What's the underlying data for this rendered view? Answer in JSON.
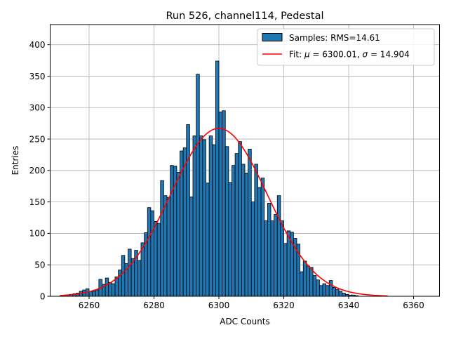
{
  "chart_data": {
    "type": "bar",
    "title": "Run 526, channel114, Pedestal",
    "xlabel": "ADC Counts",
    "ylabel": "Entries",
    "xlim": [
      6248,
      6368
    ],
    "ylim": [
      0,
      432
    ],
    "xticks": [
      6260,
      6280,
      6300,
      6320,
      6340,
      6360
    ],
    "yticks": [
      0,
      50,
      100,
      150,
      200,
      250,
      300,
      350,
      400
    ],
    "grid": true,
    "legend_position": "top-right",
    "bin_start": 6252,
    "bin_width": 1,
    "series": [
      {
        "name": "Samples: RMS=14.61",
        "color": "#1f77b4",
        "values": [
          1,
          2,
          3,
          4,
          5,
          8,
          10,
          12,
          8,
          8,
          10,
          27,
          19,
          29,
          22,
          20,
          31,
          42,
          65,
          52,
          75,
          60,
          73,
          57,
          85,
          101,
          141,
          136,
          119,
          116,
          184,
          160,
          157,
          208,
          207,
          197,
          231,
          236,
          273,
          158,
          255,
          353,
          255,
          249,
          180,
          255,
          241,
          374,
          293,
          295,
          238,
          181,
          208,
          227,
          246,
          210,
          196,
          234,
          150,
          210,
          173,
          188,
          120,
          148,
          120,
          130,
          160,
          120,
          84,
          104,
          102,
          92,
          83,
          39,
          56,
          48,
          46,
          33,
          26,
          17,
          20,
          17,
          25,
          14,
          11,
          8,
          5,
          3,
          2,
          2,
          1
        ]
      }
    ],
    "fit": {
      "name": "Fit: μ = 6300.01, σ = 14.904",
      "color": "#ff0000",
      "mu": 6300.01,
      "sigma": 14.904,
      "amplitude": 267,
      "x_range": [
        6251,
        6352
      ]
    }
  },
  "legend": {
    "samples_label": "Samples: RMS=14.61",
    "fit_prefix": "Fit: ",
    "fit_mu_symbol": "μ",
    "fit_mu_text": " = 6300.01, ",
    "fit_sigma_symbol": "σ",
    "fit_sigma_text": " = 14.904"
  }
}
